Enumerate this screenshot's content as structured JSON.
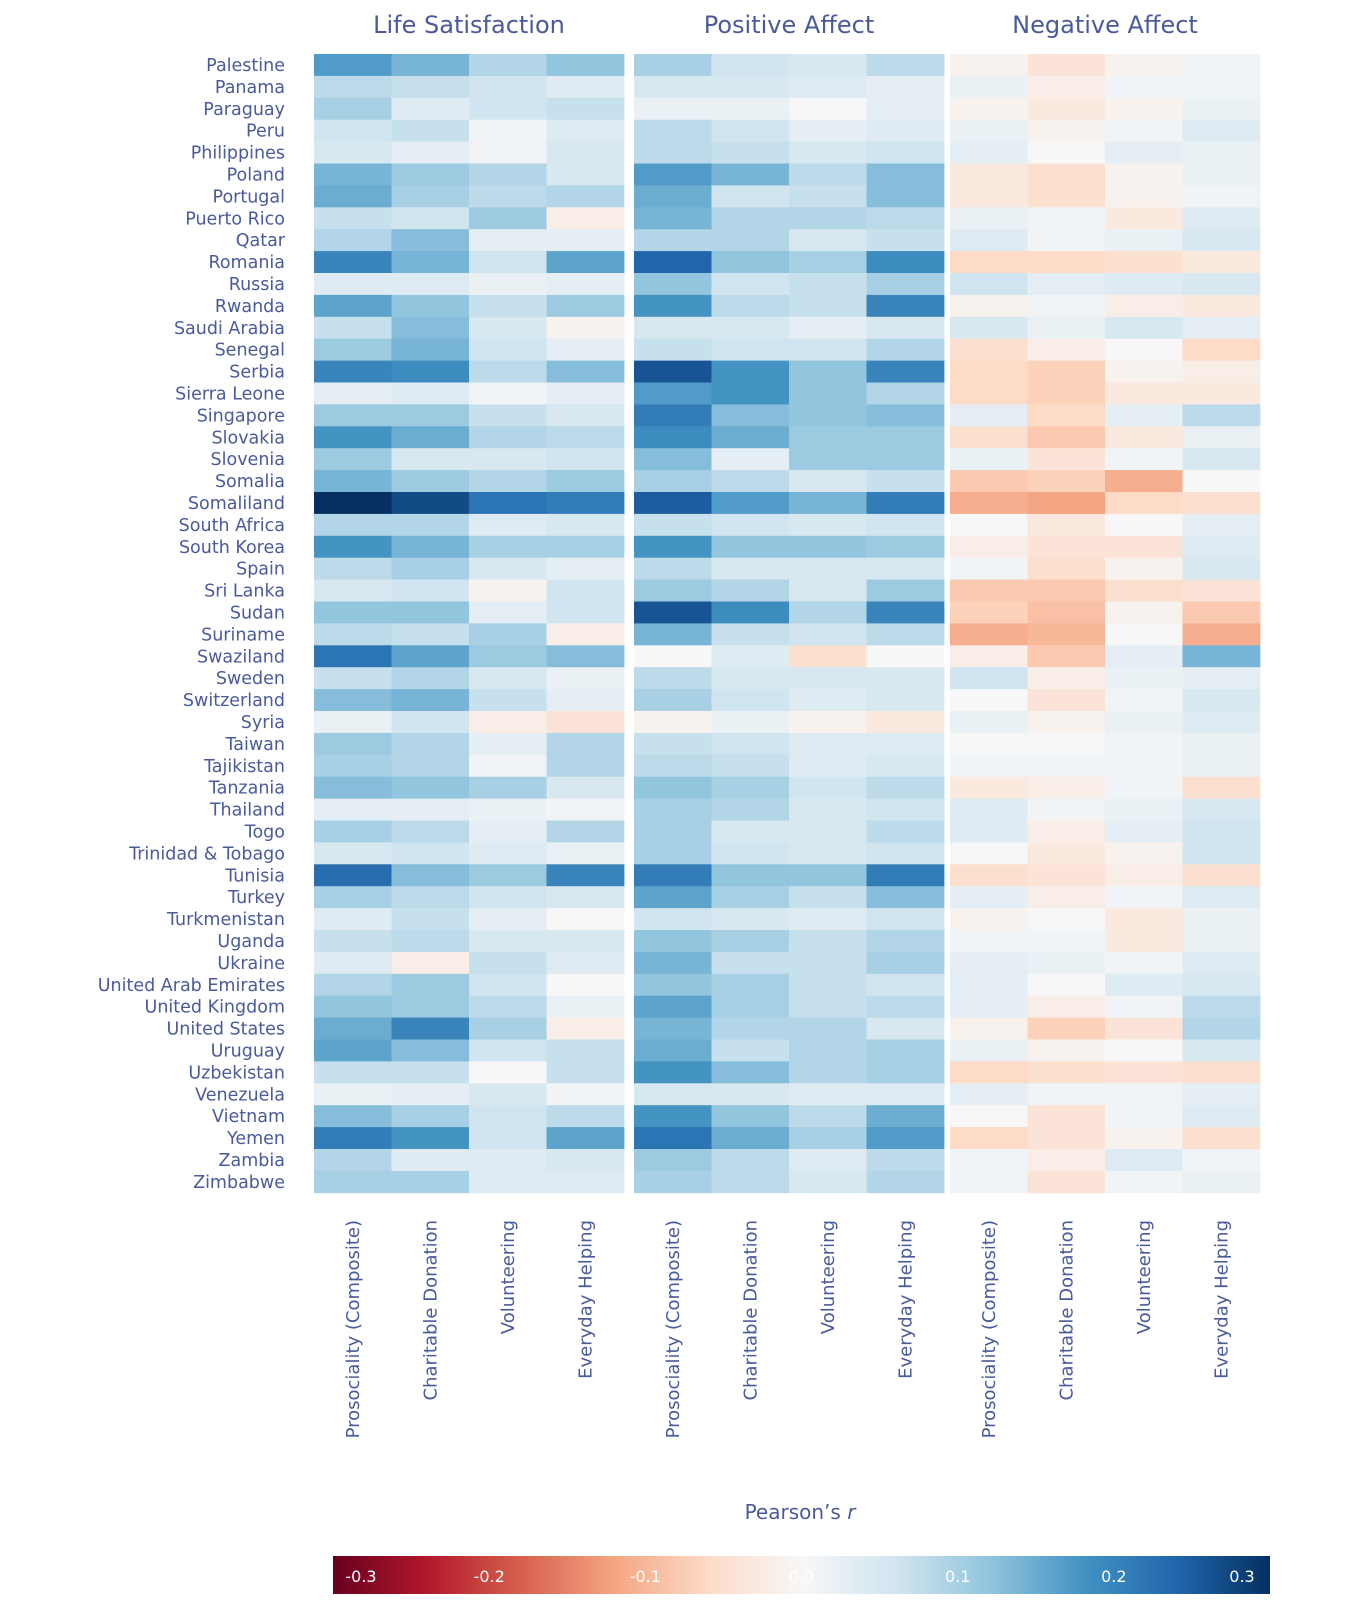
{
  "chart_data": {
    "type": "heatmap",
    "panels": [
      "Life Satisfaction",
      "Positive Affect",
      "Negative Affect"
    ],
    "measures": [
      "Prosociality (Composite)",
      "Charitable Donation",
      "Volunteering",
      "Everyday Helping"
    ],
    "rows": [
      "Palestine",
      "Panama",
      "Paraguay",
      "Peru",
      "Philippines",
      "Poland",
      "Portugal",
      "Puerto Rico",
      "Qatar",
      "Romania",
      "Russia",
      "Rwanda",
      "Saudi Arabia",
      "Senegal",
      "Serbia",
      "Sierra Leone",
      "Singapore",
      "Slovakia",
      "Slovenia",
      "Somalia",
      "Somaliland",
      "South Africa",
      "South Korea",
      "Spain",
      "Sri Lanka",
      "Sudan",
      "Suriname",
      "Swaziland",
      "Sweden",
      "Switzerland",
      "Syria",
      "Taiwan",
      "Tajikistan",
      "Tanzania",
      "Thailand",
      "Togo",
      "Trinidad & Tobago",
      "Tunisia",
      "Turkey",
      "Turkmenistan",
      "Uganda",
      "Ukraine",
      "United Arab Emirates",
      "United Kingdom",
      "United States",
      "Uruguay",
      "Uzbekistan",
      "Venezuela",
      "Vietnam",
      "Yemen",
      "Zambia",
      "Zimbabwe"
    ],
    "values": [
      [
        0.17,
        0.14,
        0.09,
        0.12,
        0.1,
        0.06,
        0.05,
        0.08,
        -0.01,
        -0.04,
        -0.01,
        0.01
      ],
      [
        0.08,
        0.07,
        0.06,
        0.04,
        0.05,
        0.05,
        0.04,
        0.03,
        0.02,
        -0.02,
        0.01,
        0.01
      ],
      [
        0.1,
        0.04,
        0.06,
        0.07,
        0.02,
        0.02,
        0.0,
        0.03,
        -0.01,
        -0.03,
        -0.01,
        0.02
      ],
      [
        0.06,
        0.07,
        0.01,
        0.04,
        0.08,
        0.06,
        0.03,
        0.04,
        0.02,
        -0.01,
        0.01,
        0.04
      ],
      [
        0.05,
        0.03,
        0.01,
        0.05,
        0.08,
        0.07,
        0.05,
        0.06,
        0.03,
        0.0,
        0.03,
        0.02
      ],
      [
        0.14,
        0.11,
        0.09,
        0.05,
        0.17,
        0.14,
        0.08,
        0.13,
        -0.03,
        -0.05,
        -0.01,
        0.02
      ],
      [
        0.15,
        0.1,
        0.08,
        0.09,
        0.15,
        0.06,
        0.07,
        0.13,
        -0.03,
        -0.05,
        -0.01,
        0.01
      ],
      [
        0.07,
        0.06,
        0.11,
        -0.02,
        0.14,
        0.09,
        0.09,
        0.08,
        0.02,
        0.01,
        -0.03,
        0.04
      ],
      [
        0.09,
        0.13,
        0.03,
        0.03,
        0.09,
        0.09,
        0.05,
        0.07,
        0.04,
        0.01,
        0.02,
        0.05
      ],
      [
        0.2,
        0.14,
        0.06,
        0.16,
        0.24,
        0.12,
        0.1,
        0.19,
        -0.06,
        -0.06,
        -0.05,
        -0.03
      ],
      [
        0.04,
        0.04,
        0.02,
        0.03,
        0.12,
        0.06,
        0.07,
        0.1,
        0.06,
        0.03,
        0.04,
        0.05
      ],
      [
        0.16,
        0.12,
        0.07,
        0.11,
        0.18,
        0.08,
        0.07,
        0.2,
        -0.01,
        0.01,
        -0.02,
        -0.03
      ],
      [
        0.07,
        0.13,
        0.05,
        -0.01,
        0.05,
        0.05,
        0.03,
        0.05,
        0.05,
        0.02,
        0.05,
        0.03
      ],
      [
        0.11,
        0.14,
        0.06,
        0.03,
        0.07,
        0.06,
        0.06,
        0.09,
        -0.05,
        -0.02,
        0.0,
        -0.06
      ],
      [
        0.2,
        0.19,
        0.08,
        0.13,
        0.26,
        0.18,
        0.12,
        0.2,
        -0.06,
        -0.07,
        -0.01,
        -0.02
      ],
      [
        0.03,
        0.04,
        0.01,
        0.03,
        0.17,
        0.18,
        0.12,
        0.09,
        -0.06,
        -0.07,
        -0.03,
        -0.03
      ],
      [
        0.11,
        0.11,
        0.07,
        0.05,
        0.21,
        0.13,
        0.12,
        0.13,
        0.03,
        -0.06,
        0.03,
        0.08
      ],
      [
        0.18,
        0.15,
        0.09,
        0.08,
        0.19,
        0.15,
        0.11,
        0.11,
        -0.05,
        -0.08,
        -0.03,
        0.02
      ],
      [
        0.11,
        0.05,
        0.05,
        0.06,
        0.13,
        0.03,
        0.11,
        0.11,
        0.02,
        -0.04,
        0.01,
        0.05
      ],
      [
        0.14,
        0.11,
        0.09,
        0.11,
        0.1,
        0.08,
        0.05,
        0.07,
        -0.08,
        -0.07,
        -0.11,
        0.0
      ],
      [
        0.33,
        0.27,
        0.22,
        0.21,
        0.25,
        0.17,
        0.14,
        0.21,
        -0.11,
        -0.12,
        -0.06,
        -0.05
      ],
      [
        0.09,
        0.09,
        0.04,
        0.05,
        0.07,
        0.06,
        0.05,
        0.06,
        0.0,
        -0.03,
        0.0,
        0.03
      ],
      [
        0.18,
        0.14,
        0.1,
        0.1,
        0.18,
        0.12,
        0.12,
        0.11,
        -0.02,
        -0.04,
        -0.04,
        0.04
      ],
      [
        0.08,
        0.1,
        0.05,
        0.03,
        0.08,
        0.05,
        0.05,
        0.05,
        0.01,
        -0.05,
        -0.01,
        0.05
      ],
      [
        0.05,
        0.06,
        -0.01,
        0.06,
        0.11,
        0.09,
        0.05,
        0.11,
        -0.08,
        -0.08,
        -0.05,
        -0.04
      ],
      [
        0.12,
        0.12,
        0.03,
        0.06,
        0.26,
        0.19,
        0.09,
        0.2,
        -0.07,
        -0.09,
        -0.01,
        -0.08
      ],
      [
        0.08,
        0.07,
        0.1,
        -0.02,
        0.14,
        0.07,
        0.06,
        0.08,
        -0.11,
        -0.1,
        0.0,
        -0.11
      ],
      [
        0.22,
        0.16,
        0.11,
        0.13,
        0.0,
        0.04,
        -0.05,
        0.0,
        -0.02,
        -0.08,
        0.03,
        0.14
      ],
      [
        0.07,
        0.09,
        0.05,
        0.02,
        0.08,
        0.05,
        0.05,
        0.05,
        0.06,
        -0.02,
        0.02,
        0.03
      ],
      [
        0.13,
        0.14,
        0.07,
        0.03,
        0.1,
        0.06,
        0.04,
        0.05,
        0.0,
        -0.04,
        0.01,
        0.05
      ],
      [
        0.02,
        0.06,
        -0.02,
        -0.04,
        -0.01,
        0.02,
        -0.01,
        -0.03,
        0.02,
        -0.01,
        0.02,
        0.04
      ],
      [
        0.11,
        0.09,
        0.03,
        0.09,
        0.07,
        0.06,
        0.04,
        0.04,
        0.0,
        0.0,
        0.01,
        0.02
      ],
      [
        0.1,
        0.09,
        0.01,
        0.09,
        0.08,
        0.07,
        0.04,
        0.05,
        0.01,
        0.01,
        0.01,
        0.02
      ],
      [
        0.13,
        0.12,
        0.1,
        0.05,
        0.12,
        0.1,
        0.06,
        0.08,
        -0.03,
        -0.02,
        0.01,
        -0.05
      ],
      [
        0.03,
        0.03,
        0.02,
        0.01,
        0.1,
        0.09,
        0.05,
        0.06,
        0.04,
        0.01,
        0.02,
        0.05
      ],
      [
        0.1,
        0.08,
        0.03,
        0.09,
        0.1,
        0.05,
        0.05,
        0.08,
        0.04,
        -0.02,
        0.03,
        0.06
      ],
      [
        0.05,
        0.06,
        0.04,
        0.02,
        0.1,
        0.06,
        0.05,
        0.06,
        0.0,
        -0.03,
        -0.01,
        0.06
      ],
      [
        0.23,
        0.13,
        0.11,
        0.2,
        0.21,
        0.12,
        0.12,
        0.21,
        -0.05,
        -0.04,
        -0.02,
        -0.05
      ],
      [
        0.1,
        0.08,
        0.06,
        0.05,
        0.16,
        0.1,
        0.07,
        0.13,
        0.03,
        -0.02,
        0.01,
        0.04
      ],
      [
        0.04,
        0.07,
        0.03,
        0.0,
        0.06,
        0.05,
        0.04,
        0.06,
        -0.01,
        0.0,
        -0.03,
        0.02
      ],
      [
        0.07,
        0.08,
        0.05,
        0.05,
        0.12,
        0.1,
        0.07,
        0.09,
        0.01,
        0.01,
        -0.03,
        0.02
      ],
      [
        0.04,
        -0.02,
        0.07,
        0.04,
        0.14,
        0.07,
        0.07,
        0.1,
        0.03,
        0.02,
        0.01,
        0.04
      ],
      [
        0.09,
        0.11,
        0.06,
        0.0,
        0.12,
        0.1,
        0.07,
        0.06,
        0.03,
        0.0,
        0.04,
        0.05
      ],
      [
        0.12,
        0.11,
        0.08,
        0.02,
        0.16,
        0.1,
        0.07,
        0.08,
        0.03,
        -0.02,
        0.01,
        0.08
      ],
      [
        0.15,
        0.2,
        0.1,
        -0.02,
        0.14,
        0.09,
        0.09,
        0.05,
        -0.01,
        -0.07,
        -0.04,
        0.09
      ],
      [
        0.16,
        0.13,
        0.06,
        0.07,
        0.15,
        0.07,
        0.09,
        0.1,
        0.02,
        -0.01,
        0.0,
        0.05
      ],
      [
        0.07,
        0.07,
        0.0,
        0.07,
        0.18,
        0.13,
        0.09,
        0.1,
        -0.06,
        -0.05,
        -0.04,
        -0.05
      ],
      [
        0.02,
        0.03,
        0.05,
        0.01,
        0.05,
        0.05,
        0.04,
        0.04,
        0.03,
        0.01,
        0.01,
        0.03
      ],
      [
        0.13,
        0.1,
        0.06,
        0.08,
        0.18,
        0.12,
        0.08,
        0.15,
        0.0,
        -0.04,
        0.01,
        0.04
      ],
      [
        0.21,
        0.18,
        0.06,
        0.16,
        0.22,
        0.15,
        0.1,
        0.17,
        -0.06,
        -0.04,
        -0.01,
        -0.05
      ],
      [
        0.09,
        0.04,
        0.04,
        0.05,
        0.11,
        0.08,
        0.04,
        0.08,
        0.01,
        -0.02,
        0.04,
        0.01
      ],
      [
        0.1,
        0.1,
        0.04,
        0.04,
        0.1,
        0.08,
        0.05,
        0.09,
        0.01,
        -0.04,
        0.01,
        0.02
      ]
    ],
    "colorbar": {
      "label": "Pearson’s",
      "label_italic": "r",
      "range": [
        -0.3,
        0.3
      ],
      "ticks": [
        "-0.3",
        "-0.2",
        "-0.1",
        "0.0",
        "0.1",
        "0.2",
        "0.3"
      ],
      "colors": [
        "#67001f",
        "#b2182b",
        "#d6604d",
        "#f4a582",
        "#fddbc7",
        "#f7f7f7",
        "#d1e5f0",
        "#92c5de",
        "#4393c3",
        "#2166ac",
        "#053061"
      ]
    },
    "grid": false
  }
}
